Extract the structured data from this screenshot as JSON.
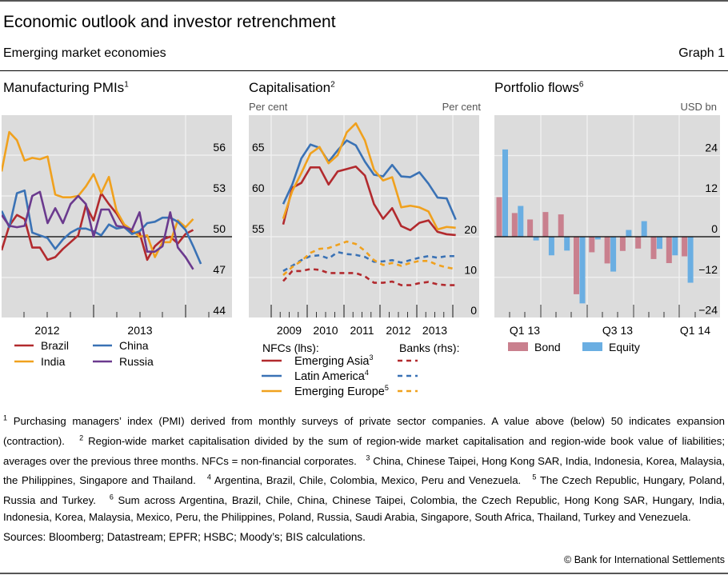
{
  "header": {
    "title": "Economic outlook and investor retrenchment",
    "subtitle": "Emerging market economies",
    "graph_number": "Graph 1"
  },
  "chart_data": [
    {
      "type": "line",
      "title": "Manufacturing PMIs",
      "title_footnote": "1",
      "xlabel": "",
      "ylabel": "",
      "y_axis_side": "right",
      "ylim": [
        44,
        59
      ],
      "yticks": [
        44,
        47,
        50,
        53,
        56
      ],
      "reference_line": 50,
      "x_tick_labels": [
        "2012",
        "2013"
      ],
      "x_start": "2011-08",
      "x_frequency": "monthly",
      "grid": true,
      "legend_placement": "bottom",
      "series": [
        {
          "name": "Brazil",
          "color": "#b22a2e",
          "style": "solid",
          "values": [
            49.0,
            50.8,
            51.6,
            51.3,
            49.2,
            49.2,
            48.3,
            48.5,
            49.1,
            49.6,
            50.1,
            52.3,
            51.2,
            53.2,
            52.4,
            51.7,
            50.8,
            50.3,
            50.3,
            48.3,
            49.3,
            49.8,
            50.0,
            49.5,
            50.2,
            50.5
          ]
        },
        {
          "name": "India",
          "color": "#f0a11e",
          "style": "solid",
          "values": [
            54.8,
            57.7,
            57.1,
            55.6,
            55.8,
            55.7,
            55.9,
            53.1,
            52.9,
            52.9,
            53.0,
            53.7,
            54.6,
            53.2,
            54.4,
            51.9,
            50.9,
            50.5,
            50.0,
            50.1,
            48.5,
            49.6,
            49.6,
            51.2,
            50.7,
            51.3
          ]
        },
        {
          "name": "China",
          "color": "#3a72b5",
          "style": "solid",
          "values": [
            51.9,
            50.7,
            53.2,
            53.4,
            50.3,
            50.1,
            49.9,
            49.1,
            49.8,
            50.3,
            50.6,
            50.6,
            50.4,
            50.1,
            50.9,
            50.6,
            50.7,
            50.2,
            50.4,
            51.0,
            51.1,
            51.4,
            51.4,
            51.1,
            50.5,
            49.3,
            48.0
          ]
        },
        {
          "name": "Russia",
          "color": "#6b3a8e",
          "style": "solid",
          "values": [
            51.6,
            50.8,
            50.7,
            50.8,
            53.0,
            53.3,
            51.0,
            52.1,
            51.0,
            52.4,
            53.0,
            52.4,
            50.0,
            52.0,
            52.0,
            50.8,
            50.7,
            50.5,
            51.8,
            48.9,
            48.9,
            49.3,
            51.8,
            49.2,
            48.5,
            47.6
          ]
        }
      ]
    },
    {
      "type": "line",
      "title": "Capitalisation",
      "title_footnote": "2",
      "ylabel_left": "Per cent",
      "ylabel_right": "Per cent",
      "ylim_left": [
        45,
        70
      ],
      "yticks_left": [
        55,
        60,
        65
      ],
      "ylim_right": [
        0,
        25
      ],
      "yticks_right": [
        0,
        10,
        20
      ],
      "x_tick_labels": [
        "2009",
        "2010",
        "2011",
        "2012",
        "2013"
      ],
      "x_start": "2008-Q4",
      "x_frequency": "quarterly",
      "grid": true,
      "legend_placement": "bottom",
      "legend_groups": {
        "nfc": "NFCs (lhs):",
        "banks": "Banks (rhs):"
      },
      "series": [
        {
          "name": "Emerging Asia",
          "footnote": "3",
          "group": "NFCs",
          "axis": "left",
          "color": "#b22a2e",
          "style": "solid",
          "values": [
            56.5,
            61.0,
            61.6,
            63.5,
            63.5,
            61.4,
            63.0,
            63.3,
            63.6,
            62.5,
            59.0,
            57.2,
            58.5,
            56.3,
            55.8,
            56.7,
            57.0,
            55.6,
            55.3,
            55.2
          ]
        },
        {
          "name": "Latin America",
          "footnote": "4",
          "group": "NFCs",
          "axis": "left",
          "color": "#3a72b5",
          "style": "solid",
          "values": [
            59.0,
            61.4,
            64.6,
            66.3,
            65.9,
            64.2,
            65.6,
            66.8,
            66.2,
            64.2,
            62.6,
            62.4,
            63.8,
            62.4,
            62.3,
            62.9,
            61.5,
            59.8,
            59.7,
            57.1
          ]
        },
        {
          "name": "Emerging Europe",
          "footnote": "5",
          "group": "NFCs",
          "axis": "left",
          "color": "#f0a11e",
          "style": "solid",
          "values": [
            57.2,
            60.6,
            62.8,
            65.2,
            66.0,
            64.0,
            65.0,
            67.8,
            68.9,
            66.8,
            63.2,
            61.9,
            62.3,
            58.6,
            58.8,
            58.6,
            58.1,
            55.9,
            56.2,
            56.1
          ]
        },
        {
          "name": "Emerging Asia",
          "group": "Banks",
          "axis": "right",
          "color": "#b22a2e",
          "style": "dashed",
          "values": [
            9.0,
            11.5,
            11.5,
            12.0,
            11.8,
            11.0,
            11.0,
            11.0,
            11.0,
            10.2,
            8.6,
            8.6,
            8.9,
            8.0,
            8.0,
            8.5,
            8.8,
            8.2,
            8.0,
            8.0
          ]
        },
        {
          "name": "Latin America",
          "group": "Banks",
          "axis": "right",
          "color": "#3a72b5",
          "style": "dashed",
          "values": [
            11.5,
            12.8,
            14.2,
            15.2,
            15.4,
            14.6,
            16.2,
            15.7,
            15.5,
            15.0,
            13.8,
            13.9,
            14.2,
            13.6,
            14.2,
            14.8,
            15.2,
            14.8,
            15.2,
            15.2
          ]
        },
        {
          "name": "Emerging Europe",
          "group": "Banks",
          "axis": "right",
          "color": "#f0a11e",
          "style": "dashed",
          "values": [
            10.5,
            12.5,
            14.0,
            16.0,
            17.0,
            17.2,
            18.0,
            18.8,
            18.2,
            16.5,
            14.2,
            13.0,
            13.5,
            12.8,
            13.5,
            14.0,
            14.0,
            13.0,
            12.4,
            12.0
          ]
        }
      ]
    },
    {
      "type": "bar",
      "title": "Portfolio flows",
      "title_footnote": "6",
      "ylabel": "USD bn",
      "y_axis_side": "right",
      "ylim": [
        -24,
        36
      ],
      "yticks": [
        -24,
        -12,
        0,
        12,
        24
      ],
      "x_tick_labels": [
        "Q1 13",
        "Q3 13",
        "Q1 14"
      ],
      "x_frequency": "monthly",
      "categories": [
        "2013-01",
        "2013-02",
        "2013-03",
        "2013-04",
        "2013-05",
        "2013-06",
        "2013-07",
        "2013-08",
        "2013-09",
        "2013-10",
        "2013-11",
        "2013-12",
        "2014-01"
      ],
      "grid": true,
      "legend_placement": "bottom",
      "series": [
        {
          "name": "Bond",
          "color": "#c9808e",
          "values": [
            11.7,
            7.0,
            5.1,
            7.3,
            6.6,
            -17.0,
            -4.6,
            -7.9,
            -4.2,
            -3.5,
            -6.6,
            -7.8,
            -5.8
          ]
        },
        {
          "name": "Equity",
          "color": "#6aaee2",
          "values": [
            25.8,
            9.1,
            -1.1,
            -5.5,
            -4.1,
            -19.7,
            -0.8,
            -10.3,
            2.0,
            4.6,
            -3.6,
            -5.5,
            -13.6
          ]
        }
      ]
    }
  ],
  "footnotes": [
    {
      "n": "1",
      "text": "Purchasing managers’ index (PMI) derived from monthly surveys of private sector companies. A value above (below) 50 indicates expansion (contraction)."
    },
    {
      "n": "2",
      "text": "Region-wide market capitalisation divided by the sum of region-wide market capitalisation and region-wide book value of liabilities; averages over the previous three months. NFCs = non-financial corporates."
    },
    {
      "n": "3",
      "text": "China, Chinese Taipei, Hong Kong SAR, India, Indonesia, Korea, Malaysia, the Philippines, Singapore and Thailand."
    },
    {
      "n": "4",
      "text": "Argentina, Brazil, Chile, Colombia, Mexico, Peru and Venezuela."
    },
    {
      "n": "5",
      "text": "The Czech Republic, Hungary, Poland, Russia and Turkey."
    },
    {
      "n": "6",
      "text": "Sum across Argentina, Brazil, Chile, China, Chinese Taipei, Colombia, the Czech Republic, Hong Kong SAR, Hungary, India, Indonesia, Korea, Malaysia, Mexico, Peru, the Philippines, Poland, Russia, Saudi Arabia, Singapore, South Africa, Thailand, Turkey and Venezuela."
    }
  ],
  "sources": "Sources: Bloomberg; Datastream; EPFR; HSBC; Moody’s; BIS calculations.",
  "copyright": "© Bank for International Settlements"
}
